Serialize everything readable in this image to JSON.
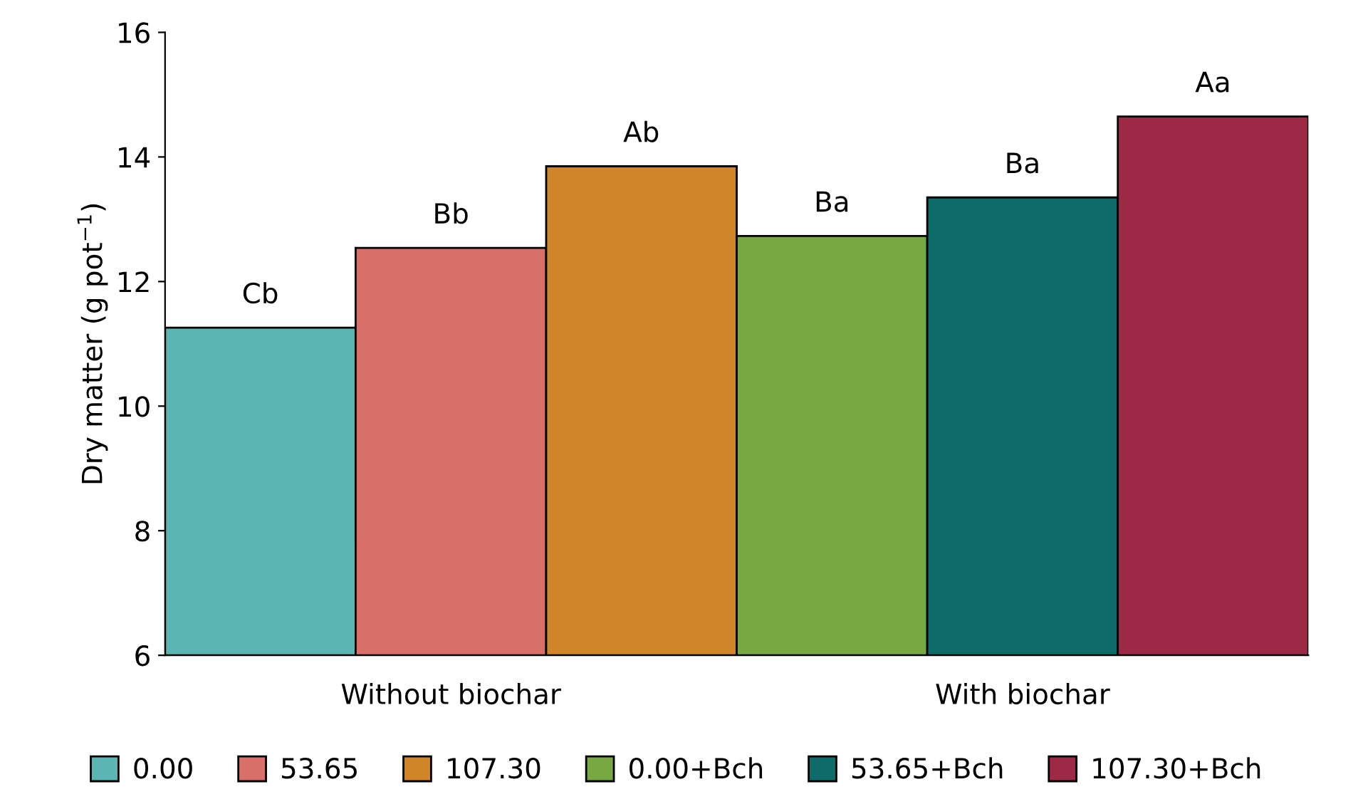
{
  "chart_data": {
    "type": "bar",
    "ylabel": "Dry matter (g pot$^{−1}$)",
    "categories": [
      "Without biochar",
      "With biochar"
    ],
    "series": [
      {
        "name": "0.00",
        "color": "#5bb5b2",
        "values": [
          11.26,
          null
        ],
        "value_labels": [
          "Cb",
          null
        ]
      },
      {
        "name": "53.65",
        "color": "#d96f69",
        "values": [
          12.54,
          null
        ],
        "value_labels": [
          "Bb",
          null
        ]
      },
      {
        "name": "107.30",
        "color": "#d08628",
        "values": [
          13.85,
          null
        ],
        "value_labels": [
          "Ab",
          null
        ]
      },
      {
        "name": "0.00+Bch",
        "color": "#77a842",
        "values": [
          null,
          12.73
        ],
        "value_labels": [
          null,
          "Ba"
        ]
      },
      {
        "name": "53.65+Bch",
        "color": "#0d6c6a",
        "values": [
          null,
          13.35
        ],
        "value_labels": [
          null,
          "Ba"
        ]
      },
      {
        "name": "107.30+Bch",
        "color": "#9c2945",
        "values": [
          null,
          14.65
        ],
        "value_labels": [
          null,
          "Aa"
        ]
      }
    ],
    "ylim": [
      6,
      16
    ],
    "yticks": [
      6,
      8,
      10,
      12,
      14,
      16
    ],
    "legend": "bottom",
    "grid": false
  }
}
